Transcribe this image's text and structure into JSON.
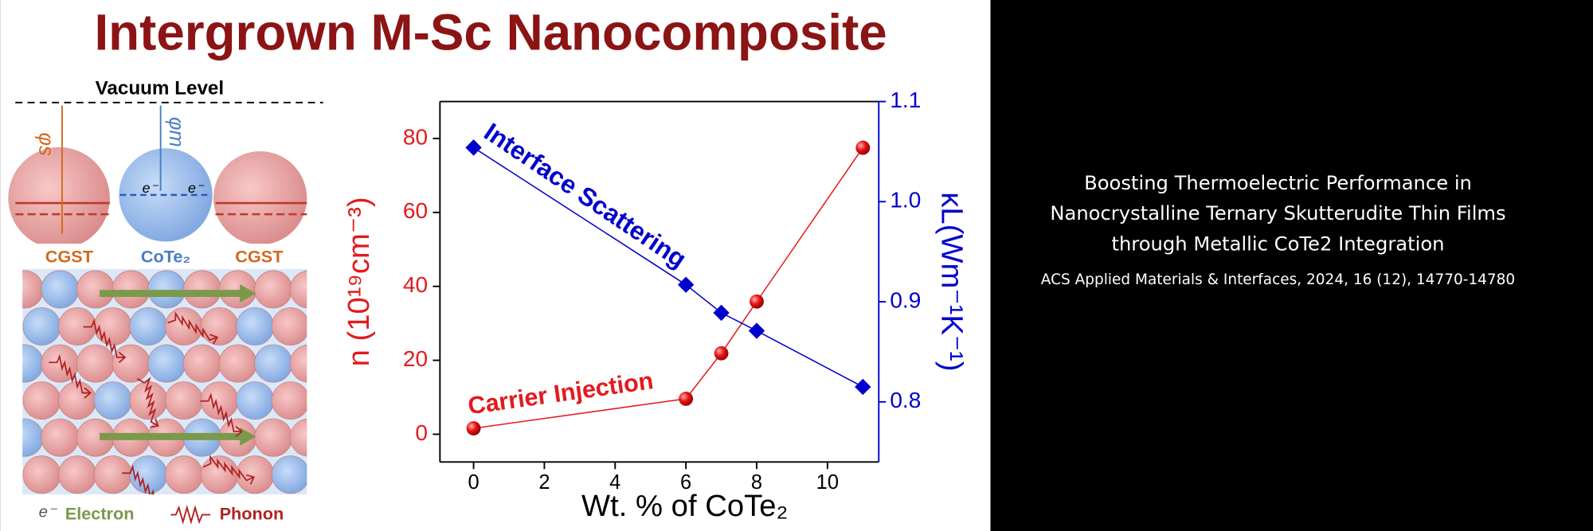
{
  "header": {
    "title": "Intergrown M-Sc Nanocomposite"
  },
  "diagram": {
    "vacuum_level": "Vacuum Level",
    "phi_s": "φs",
    "phi_m": "φm",
    "electron_symbol": "e⁻",
    "left_material": "CGST",
    "middle_material": "CoTe₂",
    "right_material": "CGST",
    "legend_electron": "Electron",
    "legend_phonon": "Phonon"
  },
  "chart_data": {
    "type": "scatter",
    "x": [
      0,
      6,
      7,
      8,
      11
    ],
    "series": [
      {
        "color": "#e31a1c",
        "values": [
          1.6,
          9.6,
          21.9,
          35.9,
          77.5
        ]
      },
      {
        "color": "#0000cc",
        "axis": "y2",
        "values": [
          1.054,
          0.917,
          0.889,
          0.871,
          0.815
        ]
      }
    ],
    "x_label": "Wt. % of CoTe₂",
    "y_label": "n (10¹⁹cm⁻³)",
    "y2_label": "κL(Wm⁻¹K⁻¹)",
    "xlim": [
      -0.95,
      11.45
    ],
    "ylim": [
      -7.5,
      90
    ],
    "y2lim": [
      0.74,
      1.1
    ],
    "xticks": [
      0,
      2,
      4,
      6,
      8,
      10
    ],
    "yticks": [
      0,
      20,
      40,
      60,
      80
    ],
    "y2ticks": [
      0.8,
      0.9,
      {
        "value": 1.0,
        "label": "1.0"
      },
      1.1
    ],
    "annotations": [
      "Interface Scattering",
      "Carrier Injection"
    ]
  },
  "caption": {
    "lines": [
      "Boosting Thermoelectric Performance in",
      "Nanocrystalline Ternary Skutterudite Thin Films",
      "through Metallic CoTe2 Integration"
    ],
    "citation": "ACS Applied Materials & Interfaces, 2024, 16 (12), 14770-14780"
  }
}
